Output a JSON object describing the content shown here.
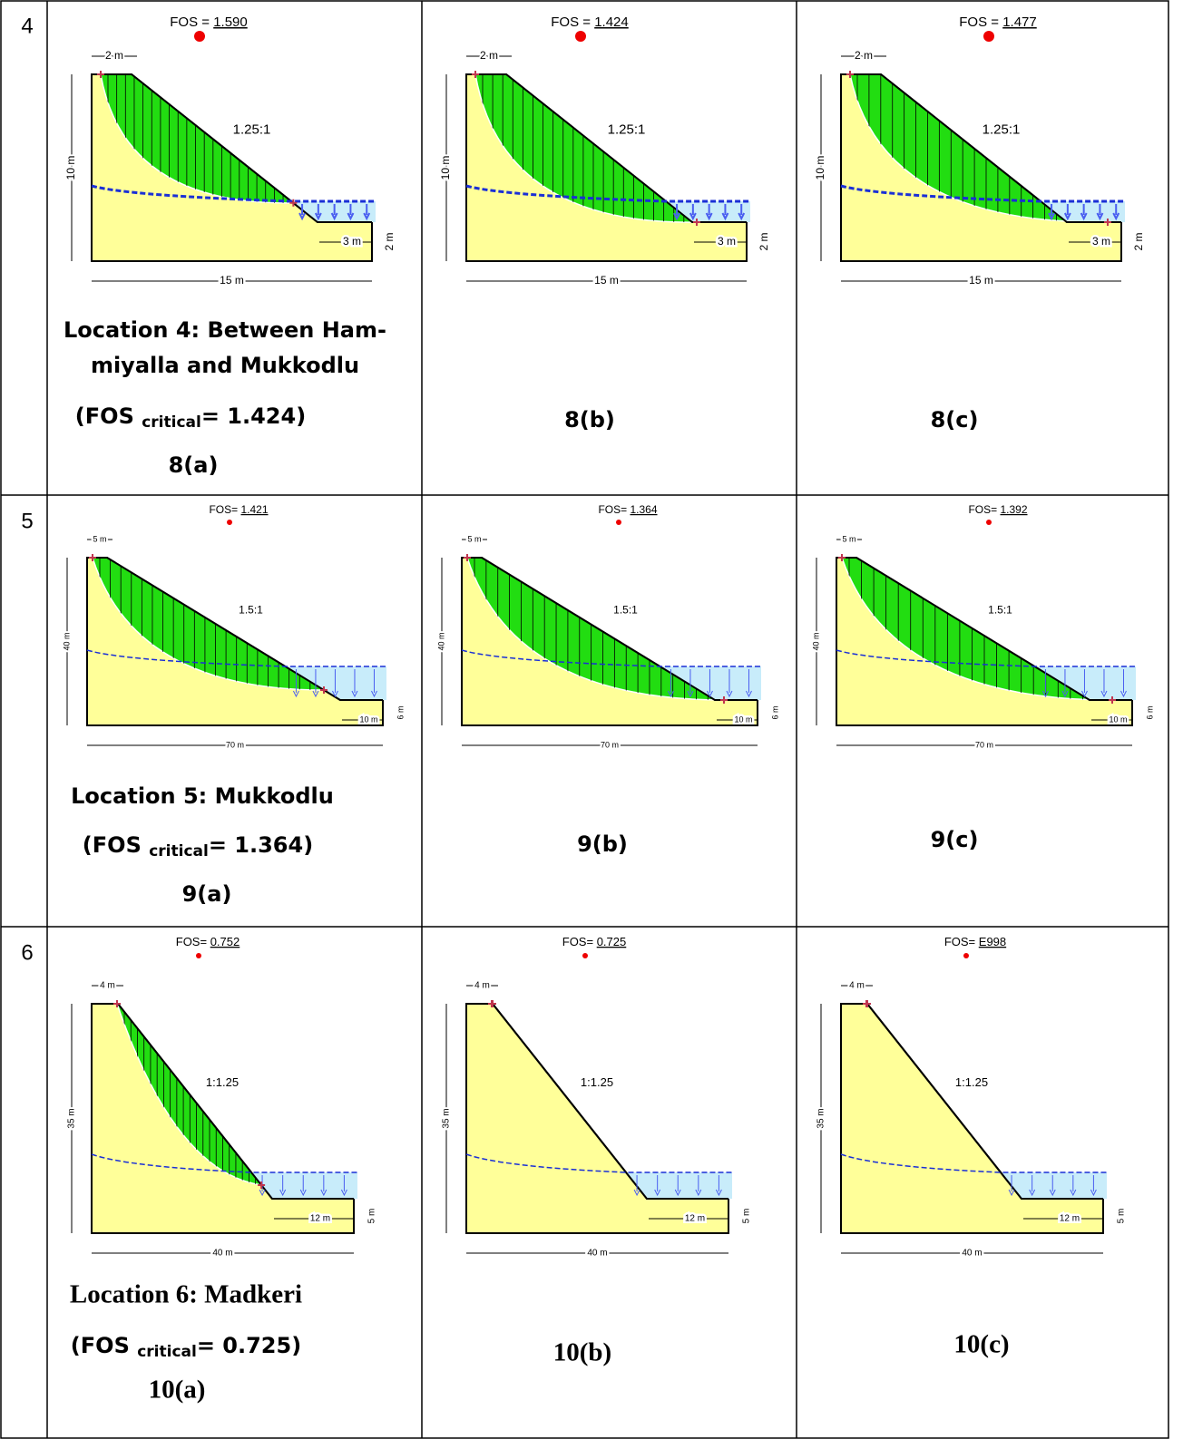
{
  "rows": [
    {
      "number": "4",
      "cells": [
        {
          "fos_label": "FOS =",
          "fos_value": "1.590",
          "crest": "2 m",
          "height": "10 m",
          "slope": "1.25:1",
          "toe": "3 m",
          "toe_height": "2 m",
          "base": "15 m",
          "caption": {
            "location": [
              "Location 4: Between Ham-",
              "miyalla and Mukkodlu"
            ],
            "fos_critical": {
              "open": "(FOS ",
              "sub": "critical",
              "close": "= 1.424)"
            },
            "figure": "8(a)"
          }
        },
        {
          "fos_label": "FOS =",
          "fos_value": "1.424",
          "crest": "2 m",
          "height": "10 m",
          "slope": "1.25:1",
          "toe": "3 m",
          "toe_height": "2 m",
          "base": "15 m",
          "caption": {
            "figure": "8(b)"
          }
        },
        {
          "fos_label": "FOS =",
          "fos_value": "1.477",
          "crest": "2 m",
          "height": "10 m",
          "slope": "1.25:1",
          "toe": "3 m",
          "toe_height": "2 m",
          "base": "15 m",
          "caption": {
            "figure": "8(c)"
          }
        }
      ]
    },
    {
      "number": "5",
      "cells": [
        {
          "fos_label": "FOS=",
          "fos_value": "1.421",
          "crest": "5 m",
          "height": "40 m",
          "slope": "1.5:1",
          "toe": "10 m",
          "toe_height": "6 m",
          "base": "70 m",
          "caption": {
            "location": [
              "Location 5: Mukkodlu"
            ],
            "fos_critical": {
              "open": "(FOS ",
              "sub": "critical",
              "close": "= 1.364)"
            },
            "figure": "9(a)"
          }
        },
        {
          "fos_label": "FOS=",
          "fos_value": "1.364",
          "crest": "5 m",
          "height": "40 m",
          "slope": "1.5:1",
          "toe": "10 m",
          "toe_height": "6 m",
          "base": "70 m",
          "caption": {
            "figure": "9(b)"
          }
        },
        {
          "fos_label": "FOS=",
          "fos_value": "1.392",
          "crest": "5 m",
          "height": "40 m",
          "slope": "1.5:1",
          "toe": "10 m",
          "toe_height": "6 m",
          "base": "70 m",
          "caption": {
            "figure": "9(c)"
          }
        }
      ]
    },
    {
      "number": "6",
      "cells": [
        {
          "fos_label": "FOS=",
          "fos_value": "0.752",
          "crest": "4 m",
          "height": "35 m",
          "slope": "1:1.25",
          "toe": "12 m",
          "toe_height": "5 m",
          "base": "40 m",
          "caption": {
            "location": [
              "Location 6: Madkeri"
            ],
            "fos_critical": {
              "open": "(FOS ",
              "sub": "critical",
              "close": "= 0.725)"
            },
            "figure": "10(a)"
          }
        },
        {
          "fos_label": "FOS=",
          "fos_value": "0.725",
          "crest": "4 m",
          "height": "35 m",
          "slope": "1:1.25",
          "toe": "12 m",
          "toe_height": "5 m",
          "base": "40 m",
          "caption": {
            "figure": "10(b)"
          }
        },
        {
          "fos_label": "FOS=",
          "fos_value": "E998",
          "crest": "4 m",
          "height": "35 m",
          "slope": "1:1.25",
          "toe": "12 m",
          "toe_height": "5 m",
          "base": "40 m",
          "caption": {
            "figure": "10(c)"
          }
        }
      ]
    }
  ]
}
